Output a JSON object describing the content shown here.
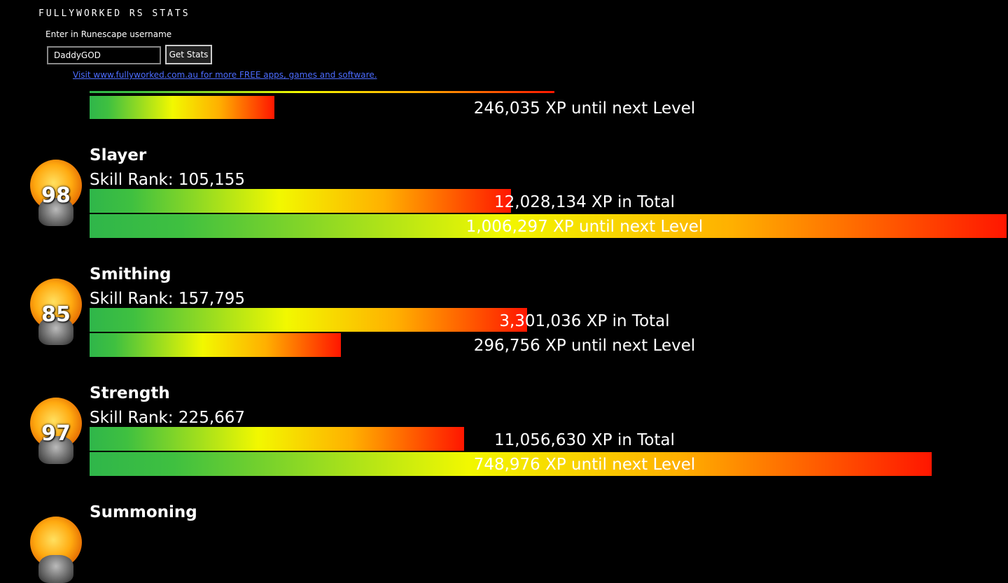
{
  "header": {
    "title": "FULLYWORKED RS STATS",
    "prompt": "Enter in Runescape username",
    "username": "DaddyGOD",
    "button": "Get Stats",
    "link": "Visit www.fullyworked.com.au for more FREE apps, games and software."
  },
  "skills": [
    {
      "next": "246,035 XP until next Level"
    },
    {
      "name": "Slayer",
      "level": "98",
      "rank": "Skill Rank: 105,155",
      "total": "12,028,134 XP in Total",
      "next": "1,006,297 XP until next Level"
    },
    {
      "name": "Smithing",
      "level": "85",
      "rank": "Skill Rank: 157,795",
      "total": "3,301,036 XP in Total",
      "next": "296,756 XP until next Level"
    },
    {
      "name": "Strength",
      "level": "97",
      "rank": "Skill Rank: 225,667",
      "total": "11,056,630 XP in Total",
      "next": "748,976 XP until next Level"
    },
    {
      "name": "Summoning"
    }
  ]
}
